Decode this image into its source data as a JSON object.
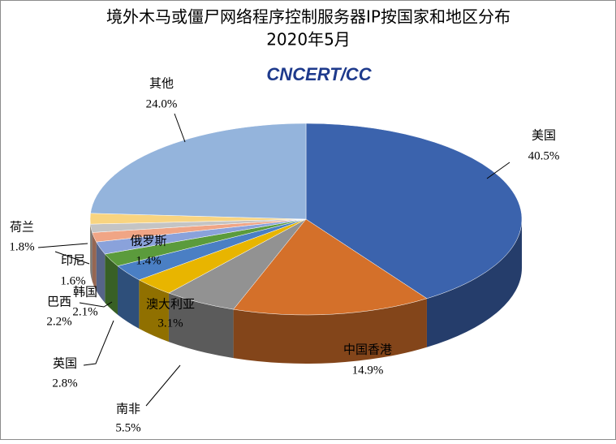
{
  "chart_data": {
    "type": "pie3d",
    "title": "境外木马或僵尸网络程序控制服务器IP按国家和地区分布",
    "subtitle": "2020年5月",
    "logo": "CNCERT/CC",
    "categories": [
      "美国",
      "中国香港",
      "南非",
      "澳大利亚",
      "英国",
      "巴西",
      "韩国",
      "印尼",
      "俄罗斯",
      "荷兰",
      "其他"
    ],
    "values": [
      40.5,
      14.9,
      5.5,
      3.1,
      2.8,
      2.2,
      2.1,
      1.6,
      1.4,
      1.8,
      24.0
    ],
    "value_labels": [
      "40.5%",
      "14.9%",
      "5.5%",
      "3.1%",
      "2.8%",
      "2.2%",
      "2.1%",
      "1.6%",
      "1.4%",
      "1.8%",
      "24.0%"
    ],
    "colors": [
      "#3b63ad",
      "#d4702a",
      "#929292",
      "#e8b500",
      "#4a7fc4",
      "#5b9b3c",
      "#8aa2db",
      "#f0a585",
      "#c4c4c4",
      "#f8d480",
      "#94b4dc"
    ]
  }
}
